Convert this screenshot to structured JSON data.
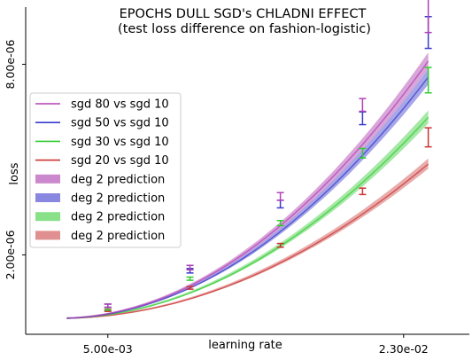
{
  "chart_data": {
    "type": "line",
    "title": "EPOCHS DULL SGD's CHLADNI EFFECT",
    "subtitle": "(test loss difference on fashion-logistic)",
    "xlabel": "learning rate",
    "ylabel": "loss",
    "xlim": [
      0.0,
      0.027
    ],
    "ylim": [
      -5e-07,
      9.8e-06
    ],
    "xticks": [
      {
        "value": 0.005,
        "label": "5.00e-03"
      },
      {
        "value": 0.023,
        "label": "2.30e-02"
      }
    ],
    "yticks": [
      {
        "value": 2e-06,
        "label": "2.00e-06"
      },
      {
        "value": 8e-06,
        "label": "8.00e-06"
      }
    ],
    "grid": false,
    "legend_position": "center-left",
    "series": [
      {
        "name": "sgd 80 vs sgd 10",
        "color": "#b040b8",
        "band_color": "#cc88cc",
        "prediction_name": "deg 2 prediction",
        "coef": 0.016,
        "band_rel": 0.03,
        "points": [
          {
            "x": 0.005,
            "y": 4e-07,
            "err": 5e-08
          },
          {
            "x": 0.01,
            "y": 1.6e-06,
            "err": 7e-08
          },
          {
            "x": 0.0155,
            "y": 3.84e-06,
            "err": 1.2e-07
          },
          {
            "x": 0.0205,
            "y": 6.72e-06,
            "err": 2e-07
          },
          {
            "x": 0.0245,
            "y": 9.6e-06,
            "err": 6e-07
          }
        ]
      },
      {
        "name": "sgd 50 vs sgd 10",
        "color": "#3a3acc",
        "band_color": "#8888e0",
        "prediction_name": "deg 2 prediction",
        "coef": 0.015,
        "band_rel": 0.03,
        "points": [
          {
            "x": 0.005,
            "y": 4e-07,
            "err": 5e-08
          },
          {
            "x": 0.01,
            "y": 1.5e-06,
            "err": 7e-08
          },
          {
            "x": 0.0155,
            "y": 3.6e-06,
            "err": 1.2e-07
          },
          {
            "x": 0.0205,
            "y": 6.3e-06,
            "err": 2e-07
          },
          {
            "x": 0.0245,
            "y": 9e-06,
            "err": 5e-07
          }
        ]
      },
      {
        "name": "sgd 30 vs sgd 10",
        "color": "#33cc33",
        "band_color": "#88e088",
        "prediction_name": "deg 2 prediction",
        "coef": 0.0125,
        "band_rel": 0.03,
        "points": [
          {
            "x": 0.005,
            "y": 3e-07,
            "err": 4e-08
          },
          {
            "x": 0.01,
            "y": 1.25e-06,
            "err": 5e-08
          },
          {
            "x": 0.0155,
            "y": 3e-06,
            "err": 8e-08
          },
          {
            "x": 0.0205,
            "y": 5.2e-06,
            "err": 1.5e-07
          },
          {
            "x": 0.0245,
            "y": 7.5e-06,
            "err": 4e-07
          }
        ]
      },
      {
        "name": "sgd 20 vs sgd 10",
        "color": "#cc3333",
        "band_color": "#e09090",
        "prediction_name": "deg 2 prediction",
        "coef": 0.0096,
        "band_rel": 0.03,
        "points": [
          {
            "x": 0.005,
            "y": 2.5e-07,
            "err": 3e-08
          },
          {
            "x": 0.01,
            "y": 9.6e-07,
            "err": 4e-08
          },
          {
            "x": 0.0155,
            "y": 2.3e-06,
            "err": 6e-08
          },
          {
            "x": 0.0205,
            "y": 4e-06,
            "err": 1e-07
          },
          {
            "x": 0.0245,
            "y": 5.7e-06,
            "err": 3e-07
          }
        ]
      }
    ]
  }
}
